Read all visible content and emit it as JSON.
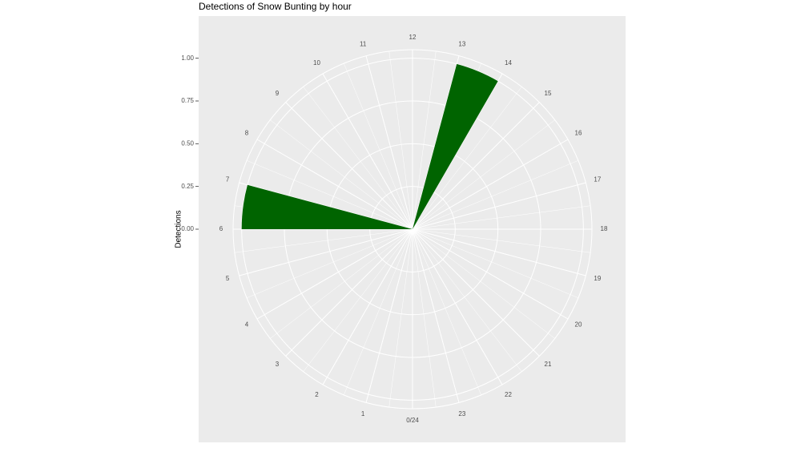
{
  "chart_data": {
    "type": "polar-bar",
    "title": "Detections of Snow Bunting by hour",
    "y_label": "Detections",
    "x": [
      6,
      13
    ],
    "values": [
      1,
      1
    ],
    "color": "#006400",
    "xlim": [
      0,
      24
    ],
    "xticks": [
      {
        "value": 0,
        "label": "0/24"
      },
      1,
      2,
      3,
      4,
      5,
      6,
      7,
      8,
      9,
      10,
      11,
      12,
      13,
      14,
      15,
      16,
      17,
      18,
      19,
      20,
      21,
      22,
      23
    ],
    "ylim": [
      0,
      1.05
    ],
    "yticks": [
      {
        "value": 0,
        "label": "0.00"
      },
      {
        "value": 0.25,
        "label": "0.25"
      },
      {
        "value": 0.5,
        "label": "0.50"
      },
      {
        "value": 0.75,
        "label": "0.75"
      },
      {
        "value": 1,
        "label": "1.00"
      }
    ],
    "grid": true
  }
}
